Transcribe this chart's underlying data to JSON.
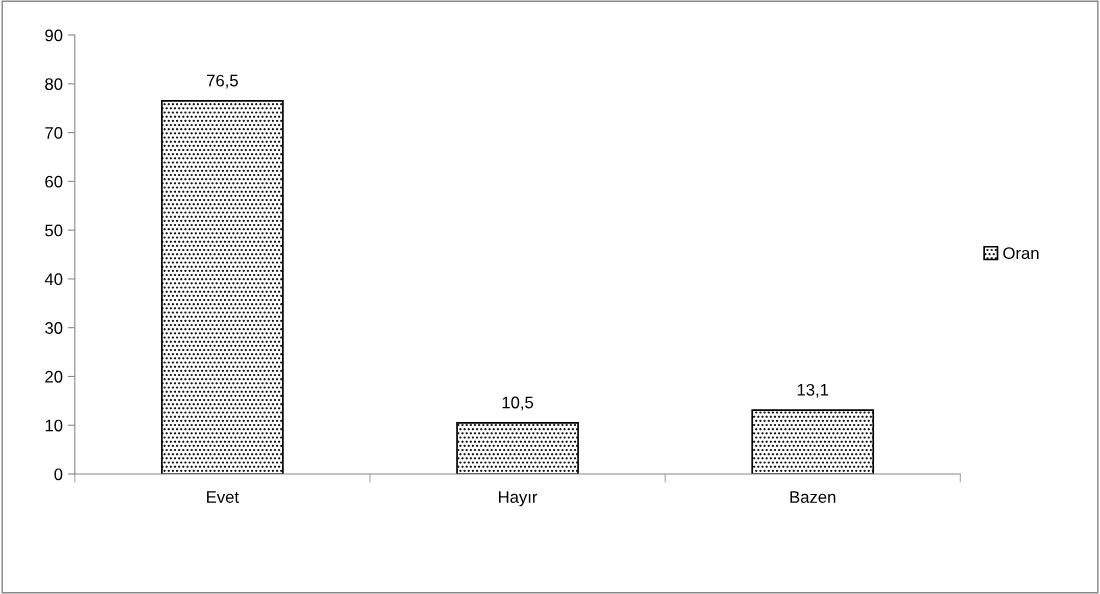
{
  "chart_data": {
    "type": "bar",
    "categories": [
      "Evet",
      "Hayır",
      "Bazen"
    ],
    "series": [
      {
        "name": "Oran",
        "color": "#000000",
        "values": [
          76.5,
          10.5,
          13.1
        ],
        "value_labels": [
          "76,5",
          "10,5",
          "13,1"
        ]
      }
    ],
    "ylim": [
      0,
      90
    ],
    "yticks": [
      0,
      10,
      20,
      30,
      40,
      50,
      60,
      70,
      80,
      90
    ],
    "grid": false,
    "legend": "right"
  }
}
